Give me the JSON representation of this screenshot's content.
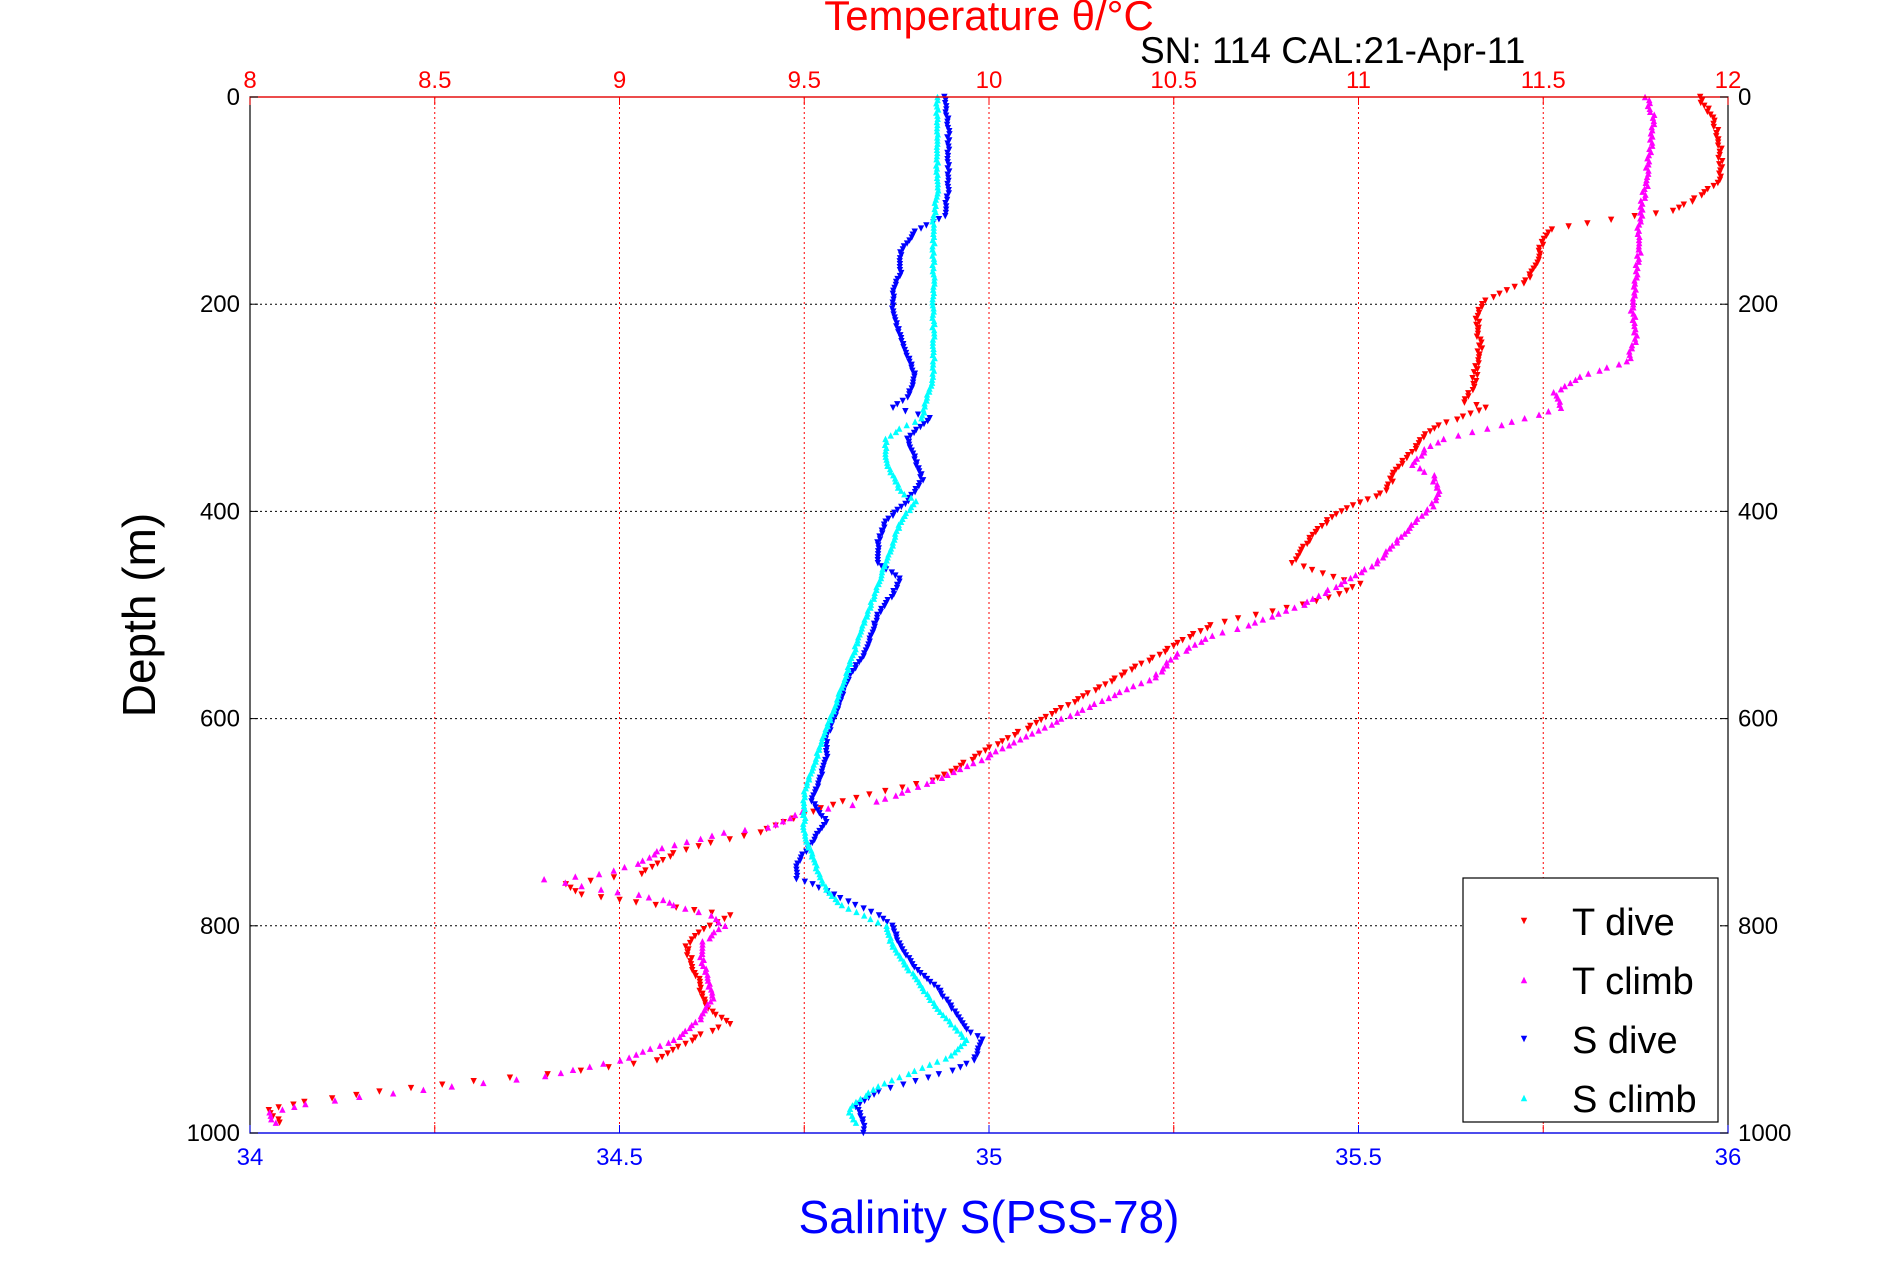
{
  "chart_data": {
    "type": "scatter",
    "top_title": "Temperature θ/°C",
    "annotation": "SN: 114  CAL:21-Apr-11",
    "xlabel_bottom": "Salinity S(PSS-78)",
    "ylabel": "Depth (m)",
    "x_top_ticks": [
      "8",
      "8.5",
      "9",
      "9.5",
      "10",
      "10.5",
      "11",
      "11.5",
      "12"
    ],
    "x_bottom_ticks": [
      "34",
      "34.5",
      "35",
      "35.5",
      "36"
    ],
    "y_ticks": [
      "0",
      "200",
      "400",
      "600",
      "800",
      "1000"
    ],
    "xlim_top": [
      8,
      12
    ],
    "xlim_bottom": [
      34,
      36
    ],
    "ylim": [
      0,
      1000
    ],
    "y_reversed": true,
    "grid": true,
    "legend_position": "bottom-right",
    "colors": {
      "top_axis": "#ff0000",
      "bottom_axis": "#0000ff",
      "grid": "#000000"
    },
    "series": [
      {
        "name": "T dive",
        "axis": "top",
        "marker": "triangle-down",
        "color": "#ff0000",
        "points": [
          [
            11.92,
            0
          ],
          [
            11.96,
            20
          ],
          [
            11.98,
            50
          ],
          [
            11.98,
            80
          ],
          [
            11.93,
            95
          ],
          [
            11.85,
            110
          ],
          [
            11.75,
            115
          ],
          [
            11.62,
            122
          ],
          [
            11.52,
            128
          ],
          [
            11.5,
            140
          ],
          [
            11.48,
            160
          ],
          [
            11.45,
            180
          ],
          [
            11.38,
            190
          ],
          [
            11.33,
            200
          ],
          [
            11.32,
            220
          ],
          [
            11.33,
            240
          ],
          [
            11.32,
            260
          ],
          [
            11.31,
            280
          ],
          [
            11.29,
            295
          ],
          [
            11.35,
            300
          ],
          [
            11.2,
            320
          ],
          [
            11.15,
            340
          ],
          [
            11.1,
            360
          ],
          [
            11.08,
            380
          ],
          [
            10.95,
            400
          ],
          [
            10.88,
            420
          ],
          [
            10.84,
            440
          ],
          [
            10.82,
            450
          ],
          [
            10.9,
            460
          ],
          [
            11.0,
            470
          ],
          [
            10.95,
            480
          ],
          [
            10.85,
            490
          ],
          [
            10.72,
            500
          ],
          [
            10.6,
            510
          ],
          [
            10.5,
            530
          ],
          [
            10.4,
            550
          ],
          [
            10.3,
            570
          ],
          [
            10.2,
            590
          ],
          [
            10.1,
            610
          ],
          [
            10.02,
            625
          ],
          [
            9.95,
            640
          ],
          [
            9.85,
            660
          ],
          [
            9.72,
            670
          ],
          [
            9.6,
            680
          ],
          [
            9.52,
            690
          ],
          [
            9.45,
            700
          ],
          [
            9.38,
            710
          ],
          [
            9.25,
            720
          ],
          [
            9.15,
            730
          ],
          [
            9.1,
            740
          ],
          [
            9.06,
            750
          ],
          [
            8.85,
            760
          ],
          [
            8.9,
            770
          ],
          [
            9.0,
            775
          ],
          [
            9.1,
            780
          ],
          [
            9.2,
            785
          ],
          [
            9.3,
            790
          ],
          [
            9.25,
            800
          ],
          [
            9.2,
            810
          ],
          [
            9.18,
            820
          ],
          [
            9.2,
            840
          ],
          [
            9.22,
            860
          ],
          [
            9.24,
            880
          ],
          [
            9.3,
            895
          ],
          [
            9.22,
            905
          ],
          [
            9.15,
            920
          ],
          [
            9.1,
            930
          ],
          [
            8.9,
            940
          ],
          [
            8.6,
            950
          ],
          [
            8.35,
            960
          ],
          [
            8.15,
            970
          ],
          [
            8.05,
            978
          ],
          [
            8.08,
            990
          ]
        ]
      },
      {
        "name": "T climb",
        "axis": "top",
        "marker": "triangle-up",
        "color": "#ff00ff",
        "points": [
          [
            11.78,
            0
          ],
          [
            11.8,
            20
          ],
          [
            11.79,
            50
          ],
          [
            11.78,
            80
          ],
          [
            11.77,
            100
          ],
          [
            11.76,
            120
          ],
          [
            11.76,
            150
          ],
          [
            11.75,
            180
          ],
          [
            11.74,
            200
          ],
          [
            11.75,
            230
          ],
          [
            11.73,
            255
          ],
          [
            11.6,
            270
          ],
          [
            11.53,
            285
          ],
          [
            11.55,
            300
          ],
          [
            11.45,
            310
          ],
          [
            11.35,
            320
          ],
          [
            11.23,
            330
          ],
          [
            11.18,
            340
          ],
          [
            11.15,
            355
          ],
          [
            11.2,
            365
          ],
          [
            11.22,
            380
          ],
          [
            11.2,
            395
          ],
          [
            11.15,
            410
          ],
          [
            11.1,
            430
          ],
          [
            11.05,
            450
          ],
          [
            10.95,
            470
          ],
          [
            10.85,
            490
          ],
          [
            10.7,
            510
          ],
          [
            10.6,
            520
          ],
          [
            10.5,
            540
          ],
          [
            10.45,
            560
          ],
          [
            10.32,
            580
          ],
          [
            10.2,
            600
          ],
          [
            10.08,
            620
          ],
          [
            9.98,
            640
          ],
          [
            9.85,
            660
          ],
          [
            9.7,
            680
          ],
          [
            9.5,
            690
          ],
          [
            9.4,
            705
          ],
          [
            9.28,
            710
          ],
          [
            9.12,
            725
          ],
          [
            9.05,
            740
          ],
          [
            8.95,
            750
          ],
          [
            8.8,
            755
          ],
          [
            8.95,
            765
          ],
          [
            9.05,
            770
          ],
          [
            9.12,
            775
          ],
          [
            9.15,
            780
          ],
          [
            9.25,
            790
          ],
          [
            9.28,
            800
          ],
          [
            9.23,
            815
          ],
          [
            9.22,
            830
          ],
          [
            9.24,
            850
          ],
          [
            9.25,
            870
          ],
          [
            9.22,
            890
          ],
          [
            9.15,
            910
          ],
          [
            9.0,
            930
          ],
          [
            8.8,
            945
          ],
          [
            8.55,
            955
          ],
          [
            8.3,
            965
          ],
          [
            8.15,
            972
          ],
          [
            8.05,
            980
          ],
          [
            8.07,
            990
          ]
        ]
      },
      {
        "name": "S dive",
        "axis": "bottom",
        "marker": "triangle-down",
        "color": "#0000ff",
        "points": [
          [
            34.94,
            0
          ],
          [
            34.945,
            30
          ],
          [
            34.945,
            60
          ],
          [
            34.945,
            90
          ],
          [
            34.94,
            115
          ],
          [
            34.9,
            130
          ],
          [
            34.88,
            150
          ],
          [
            34.88,
            170
          ],
          [
            34.87,
            190
          ],
          [
            34.87,
            210
          ],
          [
            34.88,
            230
          ],
          [
            34.89,
            250
          ],
          [
            34.9,
            270
          ],
          [
            34.89,
            290
          ],
          [
            34.87,
            300
          ],
          [
            34.92,
            310
          ],
          [
            34.89,
            330
          ],
          [
            34.9,
            350
          ],
          [
            34.91,
            370
          ],
          [
            34.89,
            390
          ],
          [
            34.86,
            410
          ],
          [
            34.85,
            430
          ],
          [
            34.85,
            450
          ],
          [
            34.88,
            465
          ],
          [
            34.87,
            480
          ],
          [
            34.85,
            500
          ],
          [
            34.84,
            520
          ],
          [
            34.83,
            540
          ],
          [
            34.81,
            560
          ],
          [
            34.8,
            580
          ],
          [
            34.79,
            600
          ],
          [
            34.78,
            620
          ],
          [
            34.78,
            640
          ],
          [
            34.77,
            660
          ],
          [
            34.76,
            680
          ],
          [
            34.78,
            700
          ],
          [
            34.76,
            720
          ],
          [
            34.74,
            740
          ],
          [
            34.74,
            755
          ],
          [
            34.76,
            760
          ],
          [
            34.79,
            770
          ],
          [
            34.82,
            780
          ],
          [
            34.85,
            790
          ],
          [
            34.87,
            800
          ],
          [
            34.88,
            820
          ],
          [
            34.9,
            840
          ],
          [
            34.93,
            860
          ],
          [
            34.95,
            880
          ],
          [
            34.97,
            900
          ],
          [
            34.99,
            910
          ],
          [
            34.98,
            930
          ],
          [
            34.95,
            940
          ],
          [
            34.9,
            950
          ],
          [
            34.85,
            960
          ],
          [
            34.82,
            975
          ],
          [
            34.83,
            990
          ],
          [
            34.83,
            1000
          ]
        ]
      },
      {
        "name": "S climb",
        "axis": "bottom",
        "marker": "triangle-up",
        "color": "#00ffff",
        "points": [
          [
            34.93,
            0
          ],
          [
            34.93,
            30
          ],
          [
            34.93,
            60
          ],
          [
            34.93,
            90
          ],
          [
            34.925,
            120
          ],
          [
            34.925,
            150
          ],
          [
            34.925,
            180
          ],
          [
            34.925,
            210
          ],
          [
            34.925,
            240
          ],
          [
            34.925,
            270
          ],
          [
            34.915,
            290
          ],
          [
            34.91,
            310
          ],
          [
            34.88,
            320
          ],
          [
            34.86,
            330
          ],
          [
            34.86,
            350
          ],
          [
            34.87,
            365
          ],
          [
            34.88,
            380
          ],
          [
            34.9,
            390
          ],
          [
            34.88,
            410
          ],
          [
            34.87,
            430
          ],
          [
            34.86,
            450
          ],
          [
            34.85,
            470
          ],
          [
            34.84,
            490
          ],
          [
            34.83,
            510
          ],
          [
            34.82,
            530
          ],
          [
            34.81,
            550
          ],
          [
            34.8,
            570
          ],
          [
            34.79,
            590
          ],
          [
            34.78,
            610
          ],
          [
            34.77,
            630
          ],
          [
            34.76,
            650
          ],
          [
            34.75,
            670
          ],
          [
            34.75,
            690
          ],
          [
            34.75,
            710
          ],
          [
            34.76,
            730
          ],
          [
            34.77,
            750
          ],
          [
            34.78,
            765
          ],
          [
            34.8,
            780
          ],
          [
            34.83,
            790
          ],
          [
            34.86,
            800
          ],
          [
            34.87,
            820
          ],
          [
            34.89,
            840
          ],
          [
            34.91,
            860
          ],
          [
            34.93,
            880
          ],
          [
            34.95,
            895
          ],
          [
            34.97,
            910
          ],
          [
            34.95,
            925
          ],
          [
            34.9,
            940
          ],
          [
            34.85,
            955
          ],
          [
            34.82,
            970
          ],
          [
            34.81,
            980
          ],
          [
            34.82,
            990
          ]
        ]
      }
    ]
  }
}
